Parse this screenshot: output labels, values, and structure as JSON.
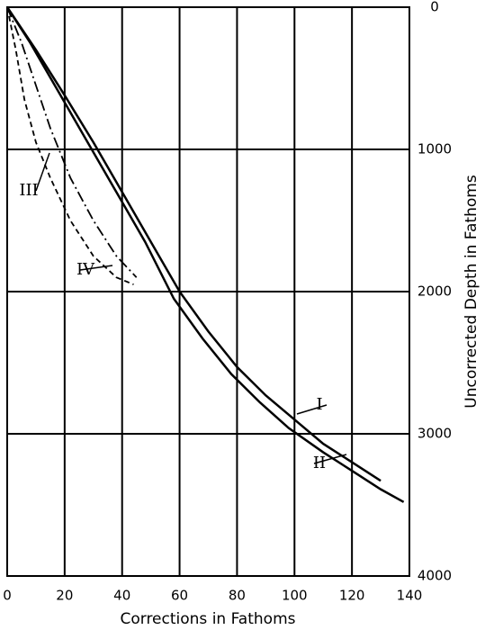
{
  "chart_data": {
    "type": "line",
    "x_label": "Corrections in Fathoms",
    "y_label": "Uncorrected Depth in Fathoms",
    "xlim": [
      0,
      140
    ],
    "xticks": [
      0,
      20,
      40,
      60,
      80,
      100,
      120,
      140
    ],
    "ylim": [
      0,
      4000
    ],
    "yticks": [
      0,
      1000,
      2000,
      3000,
      4000
    ],
    "y_inverted": true,
    "y_axis_side": "right",
    "grid": true,
    "series": [
      {
        "name": "I",
        "color": "#000000",
        "style": "solid",
        "x": [
          0,
          10,
          20,
          30,
          40,
          50,
          60,
          70,
          80,
          90,
          100,
          110,
          120,
          130
        ],
        "values": [
          0,
          300,
          620,
          950,
          1300,
          1650,
          2000,
          2280,
          2530,
          2730,
          2900,
          3070,
          3200,
          3330
        ]
      },
      {
        "name": "II",
        "color": "#000000",
        "style": "solid",
        "x": [
          0,
          8,
          18,
          28,
          38,
          48,
          58,
          68,
          78,
          88,
          98,
          110,
          120,
          130,
          138
        ],
        "values": [
          0,
          250,
          600,
          950,
          1300,
          1650,
          2050,
          2330,
          2580,
          2780,
          2960,
          3130,
          3260,
          3390,
          3480
        ]
      },
      {
        "name": "III",
        "color": "#000000",
        "style": "dashed",
        "x": [
          0,
          3,
          6,
          10,
          15,
          22,
          30,
          38,
          44
        ],
        "values": [
          0,
          300,
          650,
          950,
          1200,
          1500,
          1750,
          1900,
          1950
        ]
      },
      {
        "name": "IV",
        "color": "#000000",
        "style": "dashdot",
        "x": [
          0,
          5,
          10,
          15,
          22,
          30,
          38,
          45
        ],
        "values": [
          0,
          250,
          550,
          850,
          1200,
          1500,
          1750,
          1900
        ]
      }
    ]
  }
}
